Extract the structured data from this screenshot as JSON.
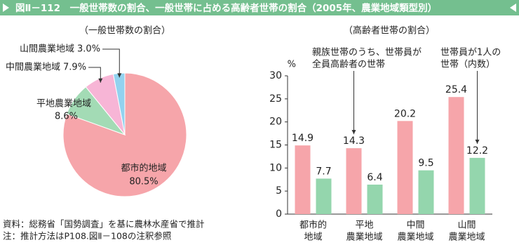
{
  "title": "図Ⅱ－112　一般世帯数の割合、一般世帯に占める高齢者世帯の割合（2005年、農業地域類型別）",
  "chart_data": [
    {
      "type": "pie",
      "subtitle": "（一般世帯数の割合）",
      "categories": [
        "都市的地域",
        "平地農業地域",
        "中間農業地域",
        "山間農業地域"
      ],
      "values": [
        80.5,
        8.6,
        7.9,
        3.0
      ],
      "value_labels": [
        "80.5%",
        "8.6%",
        "7.9%",
        "3.0%"
      ],
      "colors": [
        "#f6a5aa",
        "#a3dbb5",
        "#f7b5d6",
        "#92d2ef"
      ]
    },
    {
      "type": "bar",
      "subtitle": "（高齢者世帯の割合）",
      "y_label": "%",
      "categories": [
        [
          "都市的",
          "地域"
        ],
        [
          "平地",
          "農業地域"
        ],
        [
          "中間",
          "農業地域"
        ],
        [
          "山間",
          "農業地域"
        ]
      ],
      "series": [
        {
          "name": [
            "親族世帯のうち、世帯員が",
            "全員高齢者の世帯"
          ],
          "color": "#f6a5aa",
          "values": [
            14.9,
            14.3,
            20.2,
            25.4
          ]
        },
        {
          "name": [
            "世帯員が1人の",
            "世帯（内数）"
          ],
          "color": "#94d6ad",
          "values": [
            7.7,
            6.4,
            9.5,
            12.2
          ]
        }
      ],
      "ylim": [
        0,
        30
      ],
      "yticks": [
        0,
        5,
        10,
        15,
        20,
        25,
        30
      ]
    }
  ],
  "notes": [
    "資料：総務省「国勢調査」を基に農林水産省で推計",
    "注：推計方法はP108.図Ⅱ－108の注釈参照"
  ]
}
